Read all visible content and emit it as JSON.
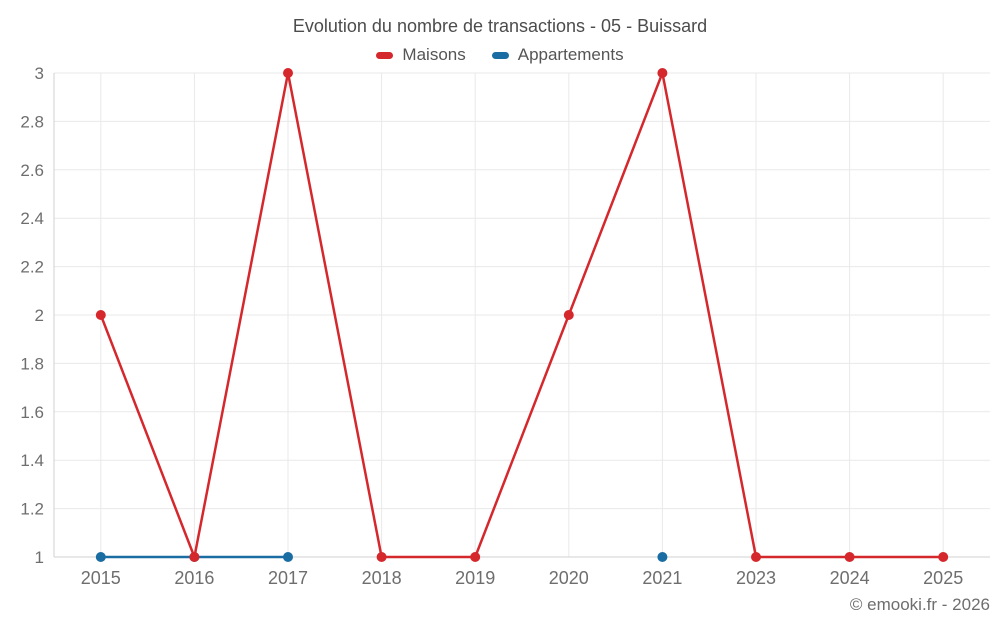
{
  "chart_data": {
    "type": "line",
    "title": "Evolution du nombre de transactions - 05 - Buissard",
    "categories": [
      "2015",
      "2016",
      "2017",
      "2018",
      "2019",
      "2020",
      "2021",
      "2023",
      "2024",
      "2025"
    ],
    "series": [
      {
        "name": "Maisons",
        "color": "#d5282d",
        "values": [
          2,
          1,
          3,
          1,
          1,
          2,
          3,
          1,
          1,
          1
        ]
      },
      {
        "name": "Appartements",
        "color": "#1a6da3",
        "values": [
          1,
          1,
          1,
          null,
          null,
          null,
          1,
          null,
          null,
          null
        ]
      }
    ],
    "ylim": [
      1,
      3
    ],
    "ytick_labels": [
      "1",
      "1.2",
      "1.4",
      "1.6",
      "1.8",
      "2",
      "2.2",
      "2.4",
      "2.6",
      "2.8",
      "3"
    ],
    "xlabel": "",
    "ylabel": "",
    "grid": true,
    "legend_position": "top"
  },
  "footer": {
    "text": "© emooki.fr - 2026"
  },
  "styles": {
    "background": "#ffffff",
    "title_color": "#4c4c4c",
    "legend_text_color": "#555555",
    "axis_label_color": "#6e6e6e",
    "gridline_color": "#e9e9e9",
    "axis_line_color": "#d0d0d0"
  }
}
